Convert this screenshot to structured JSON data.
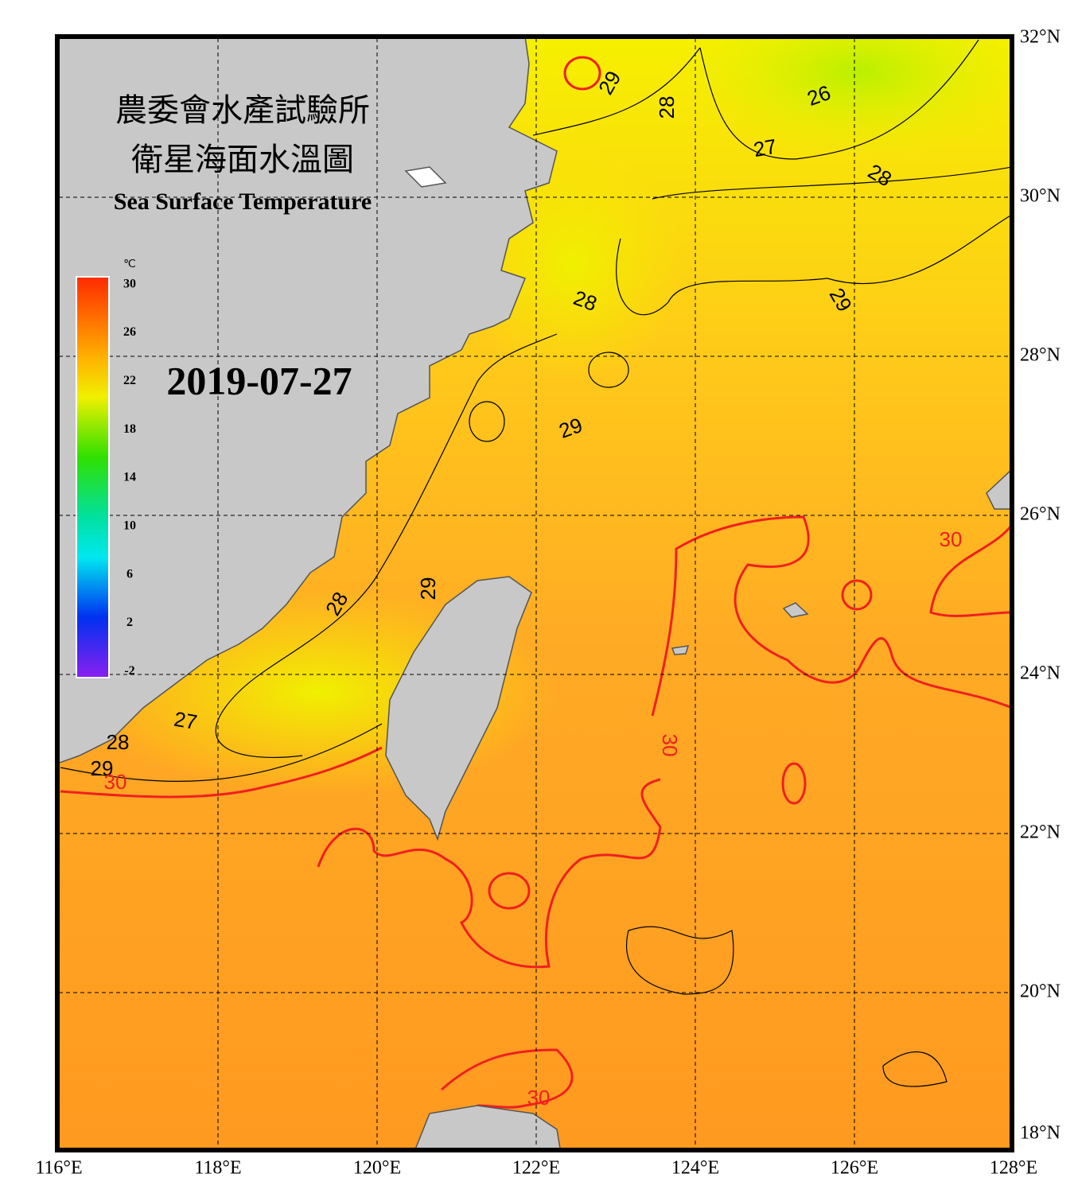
{
  "title": "農委會水產試驗所",
  "subtitle": "衛星海面水溫圖",
  "title_en": "Sea Surface Temperature",
  "date": "2019-07-27",
  "map": {
    "xlim": [
      116,
      128
    ],
    "ylim": [
      18,
      32
    ],
    "xticks": [
      {
        "value": 116,
        "label": "116°E"
      },
      {
        "value": 118,
        "label": "118°E"
      },
      {
        "value": 120,
        "label": "120°E"
      },
      {
        "value": 122,
        "label": "122°E"
      },
      {
        "value": 124,
        "label": "124°E"
      },
      {
        "value": 126,
        "label": "126°E"
      },
      {
        "value": 128,
        "label": "128°E"
      }
    ],
    "yticks": [
      {
        "value": 18,
        "label": "18°N"
      },
      {
        "value": 20,
        "label": "20°N"
      },
      {
        "value": 22,
        "label": "22°N"
      },
      {
        "value": 24,
        "label": "24°N"
      },
      {
        "value": 26,
        "label": "26°N"
      },
      {
        "value": 28,
        "label": "28°N"
      },
      {
        "value": 30,
        "label": "30°N"
      },
      {
        "value": 32,
        "label": "32°N"
      }
    ],
    "grid": true
  },
  "colorbar": {
    "unit": "℃",
    "lim": [
      -2.5,
      30.5
    ],
    "ticks": [
      30,
      26,
      22,
      18,
      14,
      10,
      6,
      2,
      -2
    ]
  },
  "contour_labels": [
    29,
    28,
    26,
    27,
    28,
    28,
    29,
    29,
    29,
    28,
    30,
    30,
    27,
    28,
    29,
    30,
    30
  ]
}
